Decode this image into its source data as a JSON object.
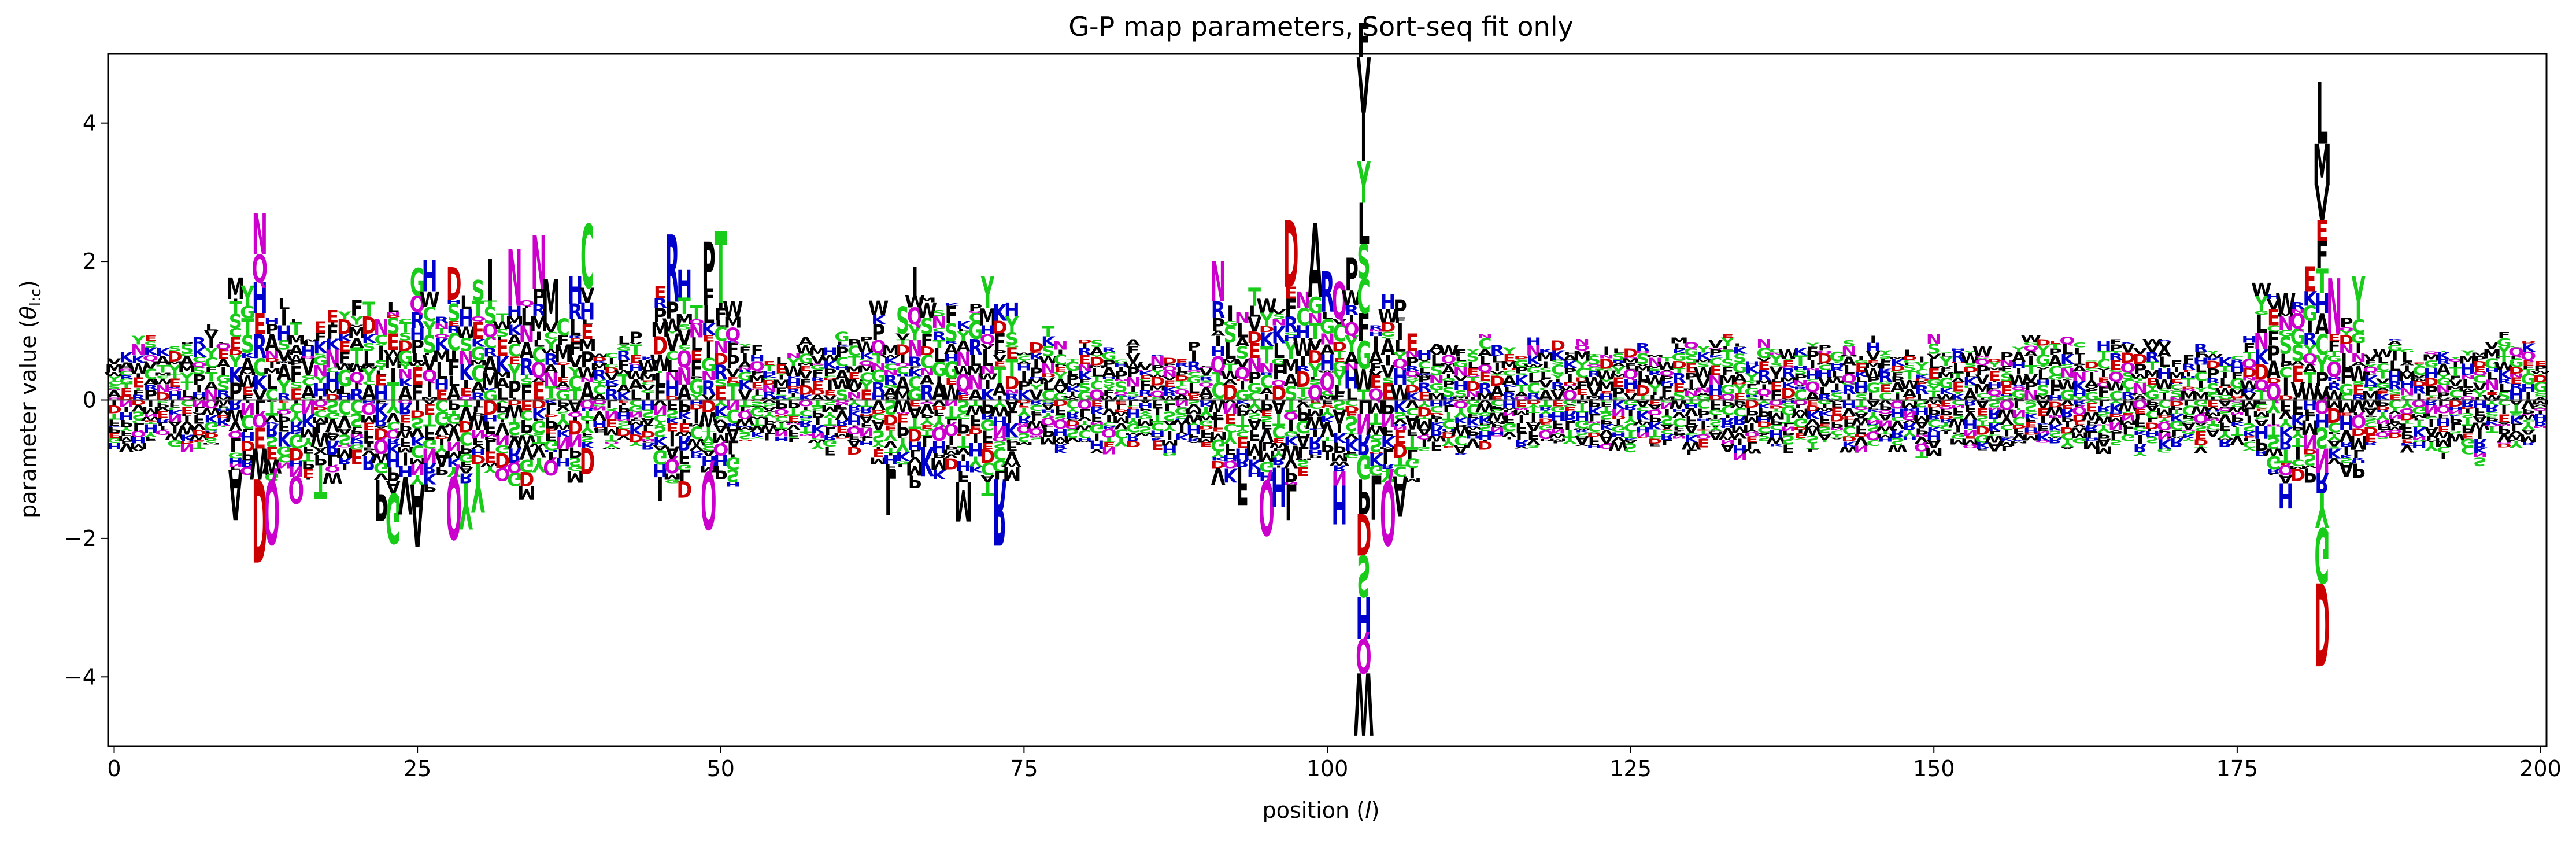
{
  "chart_data": {
    "type": "sequence-logo",
    "title": "G-P map parameters, Sort-seq fit only",
    "xlabel": "position (l)",
    "xlabel_main": "position (",
    "xlabel_var": "l",
    "xlabel_tail": ")",
    "ylabel": "parameter value (θ_{l:c})",
    "ylabel_main": "parameter value (",
    "ylabel_theta": "θ",
    "ylabel_sub": "l:c",
    "ylabel_tail": ")",
    "xlim": [
      -0.5,
      200.5
    ],
    "ylim": [
      -5,
      5
    ],
    "xticks": [
      0,
      25,
      50,
      75,
      100,
      125,
      150,
      175,
      200
    ],
    "xtick_labels": [
      "0",
      "25",
      "50",
      "75",
      "100",
      "125",
      "150",
      "175",
      "200"
    ],
    "yticks": [
      -4,
      -2,
      0,
      2,
      4
    ],
    "ytick_labels": [
      "−4",
      "−2",
      "0",
      "2",
      "4"
    ],
    "baseline": 0,
    "color_scheme": {
      "black": [
        "A",
        "F",
        "I",
        "L",
        "M",
        "P",
        "V",
        "W"
      ],
      "green": [
        "C",
        "G",
        "S",
        "T",
        "Y"
      ],
      "blue": [
        "H",
        "K",
        "R"
      ],
      "red": [
        "D",
        "E"
      ],
      "magenta": [
        "N",
        "Q"
      ]
    },
    "colors": {
      "black": "#000000",
      "green": "#19cc19",
      "blue": "#0000cc",
      "red": "#cc0000",
      "magenta": "#cc00cc"
    },
    "highlighted_positions": [
      {
        "position": 12,
        "positive": [
          [
            "V",
            0.15
          ],
          [
            "K",
            0.2
          ],
          [
            "C",
            0.25
          ],
          [
            "R",
            0.35
          ],
          [
            "E",
            0.3
          ],
          [
            "H",
            0.45
          ],
          [
            "Q",
            0.4
          ],
          [
            "N",
            0.6
          ]
        ],
        "negative": [
          [
            "L",
            0.2
          ],
          [
            "Q",
            0.2
          ],
          [
            "E",
            0.3
          ],
          [
            "W",
            0.45
          ],
          [
            "D",
            1.2
          ]
        ]
      },
      {
        "position": 103,
        "positive": [
          [
            "T",
            0.15
          ],
          [
            "W",
            0.3
          ],
          [
            "G",
            0.4
          ],
          [
            "F",
            0.4
          ],
          [
            "C",
            0.5
          ],
          [
            "S",
            0.5
          ],
          [
            "L",
            0.6
          ],
          [
            "Y",
            0.6
          ],
          [
            "I",
            0.7
          ],
          [
            "V",
            0.8
          ],
          [
            "F",
            0.5
          ]
        ],
        "negative": [
          [
            "L",
            0.2
          ],
          [
            "N",
            0.3
          ],
          [
            "R",
            0.3
          ],
          [
            "G",
            0.35
          ],
          [
            "P",
            0.5
          ],
          [
            "D",
            0.6
          ],
          [
            "S",
            0.6
          ],
          [
            "H",
            0.6
          ],
          [
            "Q",
            0.5
          ],
          [
            "W",
            0.9
          ]
        ]
      },
      {
        "position": 182,
        "positive": [
          [
            "V",
            0.2
          ],
          [
            "P",
            0.2
          ],
          [
            "Y",
            0.25
          ],
          [
            "C",
            0.3
          ],
          [
            "A",
            0.3
          ],
          [
            "H",
            0.3
          ],
          [
            "T",
            0.35
          ],
          [
            "F",
            0.4
          ],
          [
            "E",
            0.3
          ],
          [
            "V",
            0.5
          ],
          [
            "M",
            0.6
          ],
          [
            "L",
            0.9
          ]
        ],
        "negative": [
          [
            "Q",
            0.2
          ],
          [
            "H",
            0.2
          ],
          [
            "S",
            0.3
          ],
          [
            "N",
            0.35
          ],
          [
            "R",
            0.3
          ],
          [
            "Y",
            0.5
          ],
          [
            "G",
            0.8
          ],
          [
            "D",
            1.2
          ]
        ]
      }
    ]
  }
}
